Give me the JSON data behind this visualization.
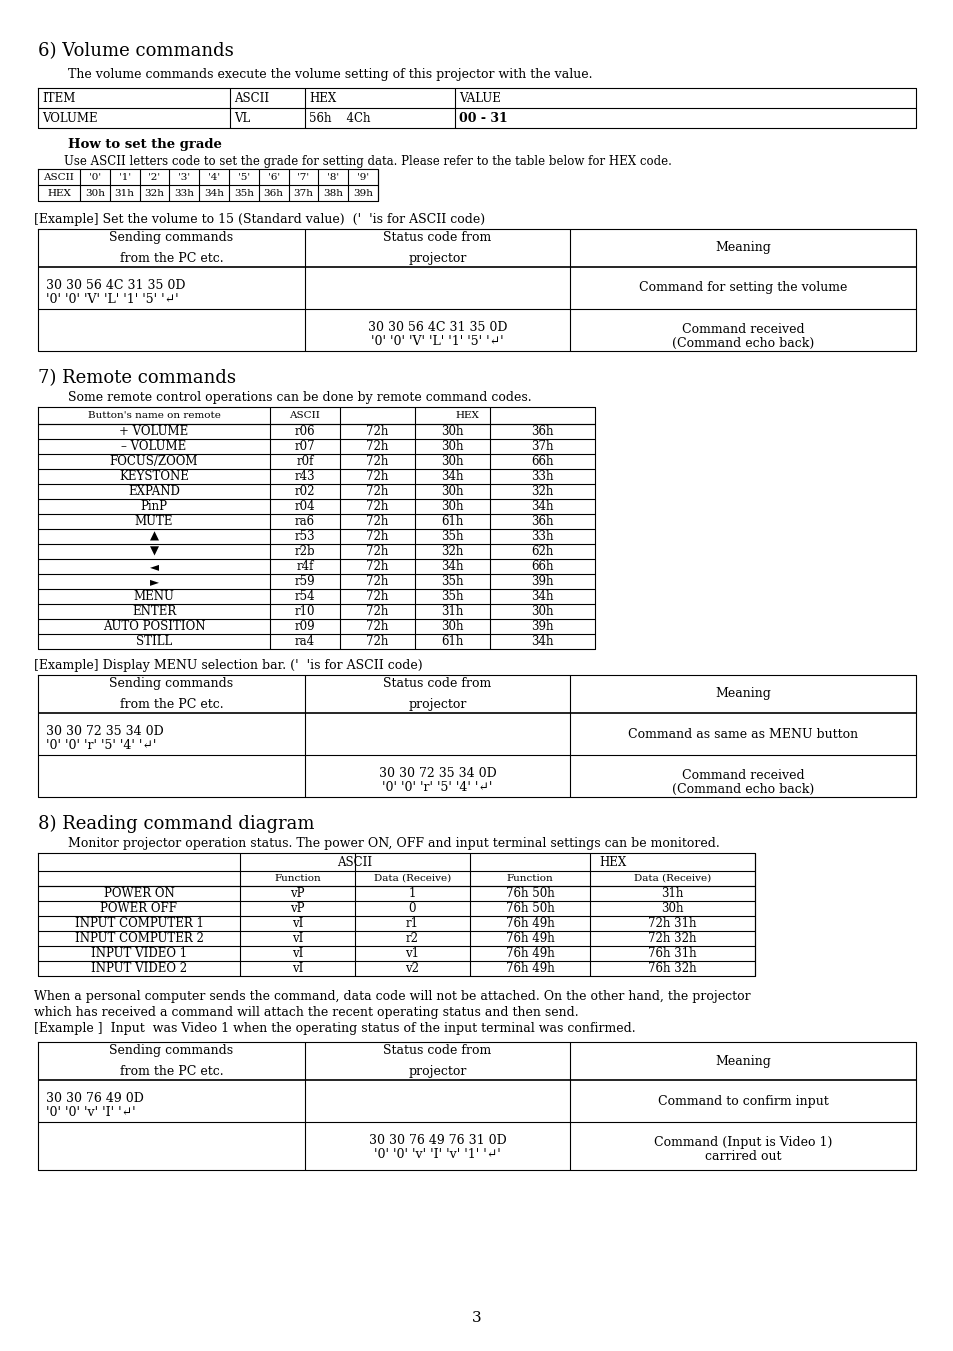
{
  "bg_color": "#ffffff",
  "heading6": "6) Volume commands",
  "para6": "The volume commands execute the volume setting of this projector with the value.",
  "vol_table_headers": [
    "ITEM",
    "ASCII",
    "HEX",
    "VALUE"
  ],
  "vol_table_row": [
    "VOLUME",
    "VL",
    "56h    4Ch",
    "00 - 31"
  ],
  "subheading": "How to set the grade",
  "subpara": "Use ASCII letters code to set the grade for setting data. Please refer to the table below for HEX code.",
  "ascii_row": [
    "ASCII",
    "'0'",
    "'1'",
    "'2'",
    "'3'",
    "'4'",
    "'5'",
    "'6'",
    "'7'",
    "'8'",
    "'9'"
  ],
  "hex_row": [
    "HEX",
    "30h",
    "31h",
    "32h",
    "33h",
    "34h",
    "35h",
    "36h",
    "37h",
    "38h",
    "39h"
  ],
  "example1": "[Example] Set the volume to 15 (Standard value)  ('  'is for ASCII code)",
  "cmd_headers": [
    "Sending commands\nfrom the PC etc.",
    "Status code from\nprojector",
    "Meaning"
  ],
  "cmd1_r1_c1": "30 30 56 4C 31 35 0D",
  "cmd1_r1_c1b": "'0' '0' 'V' 'L' '1' '5' '↵'",
  "cmd1_r1_c3": "Command for setting the volume",
  "cmd1_r2_c2": "30 30 56 4C 31 35 0D",
  "cmd1_r2_c2b": "'0' '0' 'V' 'L' '1' '5' '↵'",
  "cmd1_r2_c3a": "Command received",
  "cmd1_r2_c3b": "(Command echo back)",
  "heading7": "7) Remote commands",
  "para7": "Some remote control operations can be done by remote command codes.",
  "remote_headers": [
    "Button's name on remote",
    "ASCII",
    "HEX"
  ],
  "remote_rows": [
    [
      "+ VOLUME",
      "r06",
      "72h",
      "30h",
      "36h"
    ],
    [
      "– VOLUME",
      "r07",
      "72h",
      "30h",
      "37h"
    ],
    [
      "FOCUS/ZOOM",
      "r0f",
      "72h",
      "30h",
      "66h"
    ],
    [
      "KEYSTONE",
      "r43",
      "72h",
      "34h",
      "33h"
    ],
    [
      "EXPAND",
      "r02",
      "72h",
      "30h",
      "32h"
    ],
    [
      "PinP",
      "r04",
      "72h",
      "30h",
      "34h"
    ],
    [
      "MUTE",
      "ra6",
      "72h",
      "61h",
      "36h"
    ],
    [
      "▲",
      "r53",
      "72h",
      "35h",
      "33h"
    ],
    [
      "▼",
      "r2b",
      "72h",
      "32h",
      "62h"
    ],
    [
      "◄",
      "r4f",
      "72h",
      "34h",
      "66h"
    ],
    [
      "►",
      "r59",
      "72h",
      "35h",
      "39h"
    ],
    [
      "MENU",
      "r54",
      "72h",
      "35h",
      "34h"
    ],
    [
      "ENTER",
      "r10",
      "72h",
      "31h",
      "30h"
    ],
    [
      "AUTO POSITION",
      "r09",
      "72h",
      "30h",
      "39h"
    ],
    [
      "STILL",
      "ra4",
      "72h",
      "61h",
      "34h"
    ]
  ],
  "example2": "[Example] Display MENU selection bar. ('  'is for ASCII code)",
  "cmd2_r1_c1": "30 30 72 35 34 0D",
  "cmd2_r1_c1b": "'0' '0' 'r' '5' '4' '↵'",
  "cmd2_r1_c3": "Command as same as MENU button",
  "cmd2_r2_c2": "30 30 72 35 34 0D",
  "cmd2_r2_c2b": "'0' '0' 'r' '5' '4' '↵'",
  "cmd2_r2_c3a": "Command received",
  "cmd2_r2_c3b": "(Command echo back)",
  "heading8": "8) Reading command diagram",
  "para8": "Monitor projector operation status. The power ON, OFF and input terminal settings can be monitored.",
  "read_top_headers": [
    "",
    "ASCII",
    "HEX"
  ],
  "read_sub_headers": [
    "",
    "Function",
    "Data (Receive)",
    "Function",
    "Data (Receive)"
  ],
  "read_rows": [
    [
      "POWER ON",
      "vP",
      "1",
      "76h 50h",
      "31h"
    ],
    [
      "POWER OFF",
      "vP",
      "0",
      "76h 50h",
      "30h"
    ],
    [
      "INPUT COMPUTER 1",
      "vI",
      "r1",
      "76h 49h",
      "72h 31h"
    ],
    [
      "INPUT COMPUTER 2",
      "vI",
      "r2",
      "76h 49h",
      "72h 32h"
    ],
    [
      "INPUT VIDEO 1",
      "vI",
      "v1",
      "76h 49h",
      "76h 31h"
    ],
    [
      "INPUT VIDEO 2",
      "vI",
      "v2",
      "76h 49h",
      "76h 32h"
    ]
  ],
  "para8b1": "When a personal computer sends the command, data code will not be attached. On the other hand, the projector",
  "para8b2": "which has received a command will attach the recent operating status and then send.",
  "para8b3": "[Example ]  Input  was Video 1 when the operating status of the input terminal was confirmed.",
  "cmd3_r1_c1": "30 30 76 49 0D",
  "cmd3_r1_c1b": "'0' '0' 'v' 'I' '↵'",
  "cmd3_r1_c3": "Command to confirm input",
  "cmd3_r2_c2": "30 30 76 49 76 31 0D",
  "cmd3_r2_c2b": "'0' '0' 'v' 'I' 'v' '1' '↵'",
  "cmd3_r2_c3a": "Command (Input is Video 1)",
  "cmd3_r2_c3b": "carrired out",
  "page_num": "3"
}
